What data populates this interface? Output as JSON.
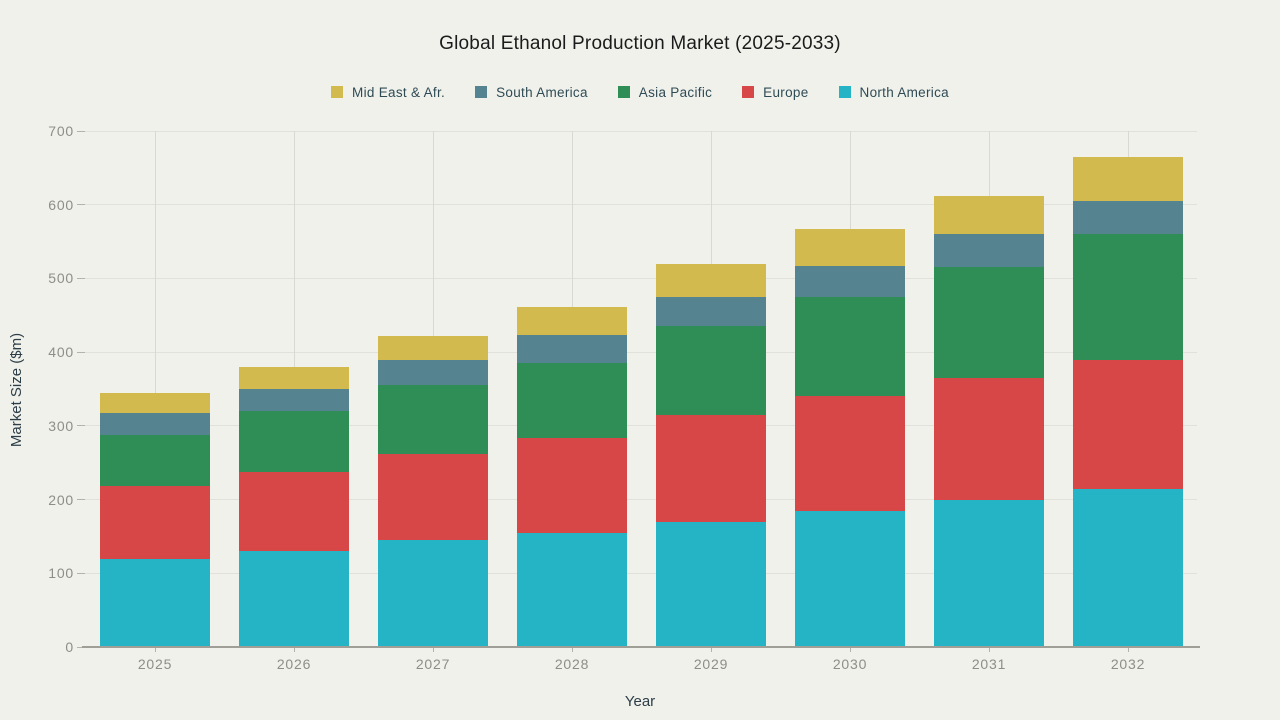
{
  "chart_data": {
    "type": "bar",
    "stacked": true,
    "title": "Global Ethanol Production Market (2025-2033)",
    "xlabel": "Year",
    "ylabel": "Market Size ($m)",
    "ylim": [
      0,
      700
    ],
    "yticks": [
      0,
      100,
      200,
      300,
      400,
      500,
      600,
      700
    ],
    "categories": [
      "2025",
      "2026",
      "2027",
      "2028",
      "2029",
      "2030",
      "2031",
      "2032"
    ],
    "series": [
      {
        "name": "North America",
        "color": "#24b4c6",
        "values": [
          120,
          130,
          145,
          155,
          170,
          185,
          200,
          215
        ]
      },
      {
        "name": "Europe",
        "color": "#d84747",
        "values": [
          98,
          108,
          117,
          128,
          145,
          155,
          165,
          175
        ]
      },
      {
        "name": "Asia Pacific",
        "color": "#2f8e55",
        "values": [
          70,
          82,
          93,
          102,
          120,
          135,
          150,
          170
        ]
      },
      {
        "name": "South America",
        "color": "#55838f",
        "values": [
          30,
          30,
          35,
          38,
          40,
          42,
          45,
          45
        ]
      },
      {
        "name": "Mid East & Afr.",
        "color": "#d3ba4e",
        "values": [
          27,
          30,
          32,
          38,
          45,
          50,
          52,
          60
        ]
      }
    ],
    "totals": [
      345,
      380,
      422,
      461,
      520,
      567,
      612,
      665
    ],
    "legend_order": [
      "Mid East & Afr.",
      "South America",
      "Asia Pacific",
      "Europe",
      "North America"
    ],
    "legend_position": "top-center",
    "grid": true,
    "colors": {
      "background": "#f1f1ec",
      "h_gridline": "#e1e1da",
      "v_gridline": "#d9d9d3",
      "axis_line": "#a09f97",
      "tick_text": "#8e8e88",
      "axis_title_text": "#2c3e47",
      "legend_text": "#2e4b55",
      "title_text": "#1b1b1b"
    }
  }
}
